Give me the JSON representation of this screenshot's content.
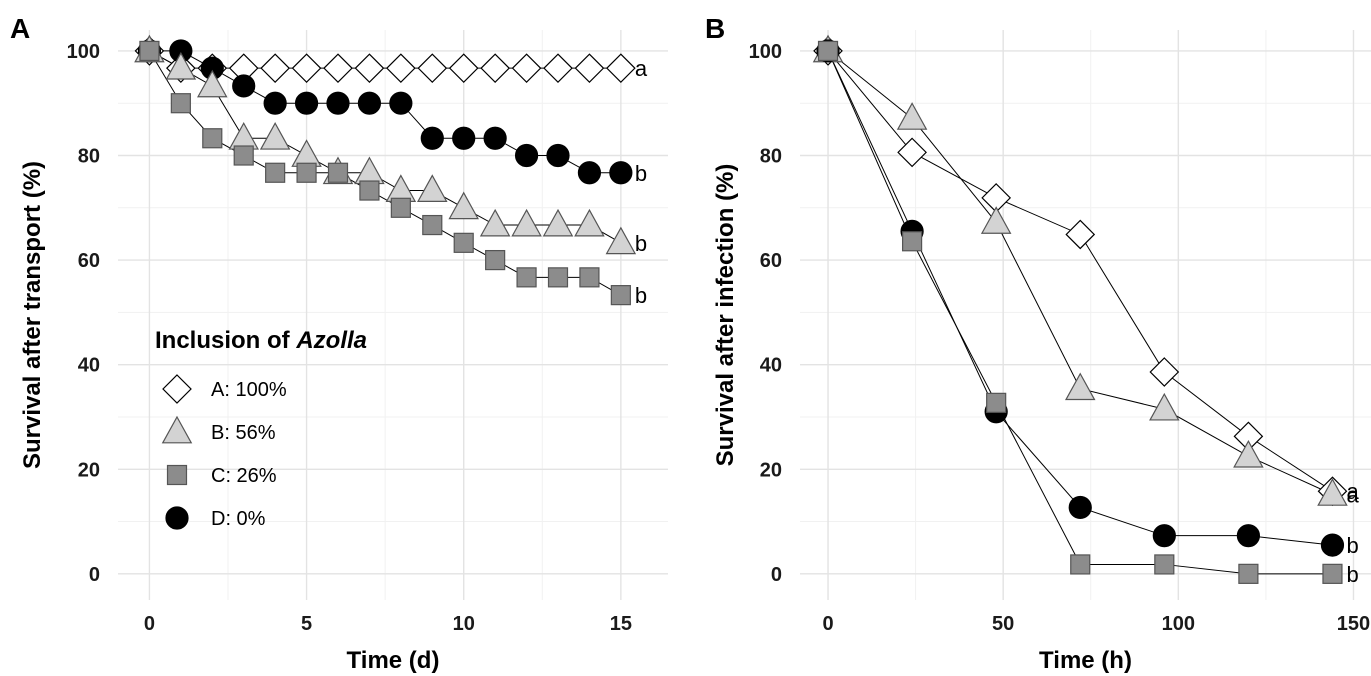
{
  "chart_data": [
    {
      "panel": "A",
      "type": "line",
      "xlabel": "Time (d)",
      "ylabel": "Survival after transport (%)",
      "xlim": [
        -1,
        16.5
      ],
      "ylim": [
        -5,
        104
      ],
      "xticks": [
        0,
        5,
        10,
        15
      ],
      "yticks": [
        0,
        20,
        40,
        60,
        80,
        100
      ],
      "grid": true,
      "legend": {
        "title_prefix": "Inclusion of ",
        "title_italic": "Azolla",
        "position": "bottom-left",
        "entries": [
          {
            "key": "A",
            "label": "A: 100%"
          },
          {
            "key": "B",
            "label": "B: 56%"
          },
          {
            "key": "C",
            "label": "C: 26%"
          },
          {
            "key": "D",
            "label": "D: 0%"
          }
        ]
      },
      "series": [
        {
          "key": "A",
          "marker": "diamond",
          "fill": "#ffffff",
          "x": [
            0,
            1,
            2,
            3,
            4,
            5,
            6,
            7,
            8,
            9,
            10,
            11,
            12,
            13,
            14,
            15
          ],
          "y": [
            100,
            96.7,
            96.7,
            96.7,
            96.7,
            96.7,
            96.7,
            96.7,
            96.7,
            96.7,
            96.7,
            96.7,
            96.7,
            96.7,
            96.7,
            96.7
          ],
          "end_label": "a"
        },
        {
          "key": "D",
          "marker": "circle",
          "fill": "#000000",
          "x": [
            0,
            1,
            2,
            3,
            4,
            5,
            6,
            7,
            8,
            9,
            10,
            11,
            12,
            13,
            14,
            15
          ],
          "y": [
            100,
            100,
            96.7,
            93.3,
            90,
            90,
            90,
            90,
            90,
            83.3,
            83.3,
            83.3,
            80,
            80,
            76.7,
            76.7
          ],
          "end_label": "b"
        },
        {
          "key": "B",
          "marker": "triangle",
          "fill": "#d3d3d3",
          "x": [
            0,
            1,
            2,
            3,
            4,
            5,
            6,
            7,
            8,
            9,
            10,
            11,
            12,
            13,
            14,
            15
          ],
          "y": [
            100,
            96.7,
            93.3,
            83.3,
            83.3,
            80,
            76.7,
            76.7,
            73.3,
            73.3,
            70,
            66.7,
            66.7,
            66.7,
            66.7,
            63.3
          ],
          "end_label": "b"
        },
        {
          "key": "C",
          "marker": "square",
          "fill": "#8c8c8c",
          "x": [
            0,
            1,
            2,
            3,
            4,
            5,
            6,
            7,
            8,
            9,
            10,
            11,
            12,
            13,
            14,
            15
          ],
          "y": [
            100,
            90,
            83.3,
            80,
            76.7,
            76.7,
            76.7,
            73.3,
            70,
            66.7,
            63.3,
            60,
            56.7,
            56.7,
            56.7,
            53.3
          ],
          "end_label": "b"
        }
      ]
    },
    {
      "panel": "B",
      "type": "line",
      "xlabel": "Time (h)",
      "ylabel": "Survival after infection (%)",
      "xlim": [
        -8,
        155
      ],
      "ylim": [
        -5,
        104
      ],
      "xticks": [
        0,
        50,
        100,
        150
      ],
      "yticks": [
        0,
        20,
        40,
        60,
        80,
        100
      ],
      "grid": true,
      "series": [
        {
          "key": "A",
          "marker": "diamond",
          "fill": "#ffffff",
          "x": [
            0,
            24,
            48,
            72,
            96,
            120,
            144
          ],
          "y": [
            100,
            80.6,
            71.9,
            64.9,
            38.6,
            26.3,
            15.8
          ],
          "end_label": "a"
        },
        {
          "key": "B",
          "marker": "triangle",
          "fill": "#d3d3d3",
          "x": [
            0,
            24,
            48,
            72,
            96,
            120,
            144
          ],
          "y": [
            100,
            87.1,
            67.2,
            35.4,
            31.5,
            22.5,
            15.2
          ],
          "end_label": "a"
        },
        {
          "key": "D",
          "marker": "circle",
          "fill": "#000000",
          "x": [
            0,
            24,
            48,
            72,
            96,
            120,
            144
          ],
          "y": [
            100,
            65.5,
            31.0,
            12.7,
            7.3,
            7.3,
            5.5
          ],
          "end_label": "b"
        },
        {
          "key": "C",
          "marker": "square",
          "fill": "#8c8c8c",
          "x": [
            0,
            24,
            48,
            72,
            96,
            120,
            144
          ],
          "y": [
            100,
            63.6,
            32.7,
            1.8,
            1.8,
            0,
            0
          ],
          "end_label": "b"
        }
      ]
    }
  ]
}
